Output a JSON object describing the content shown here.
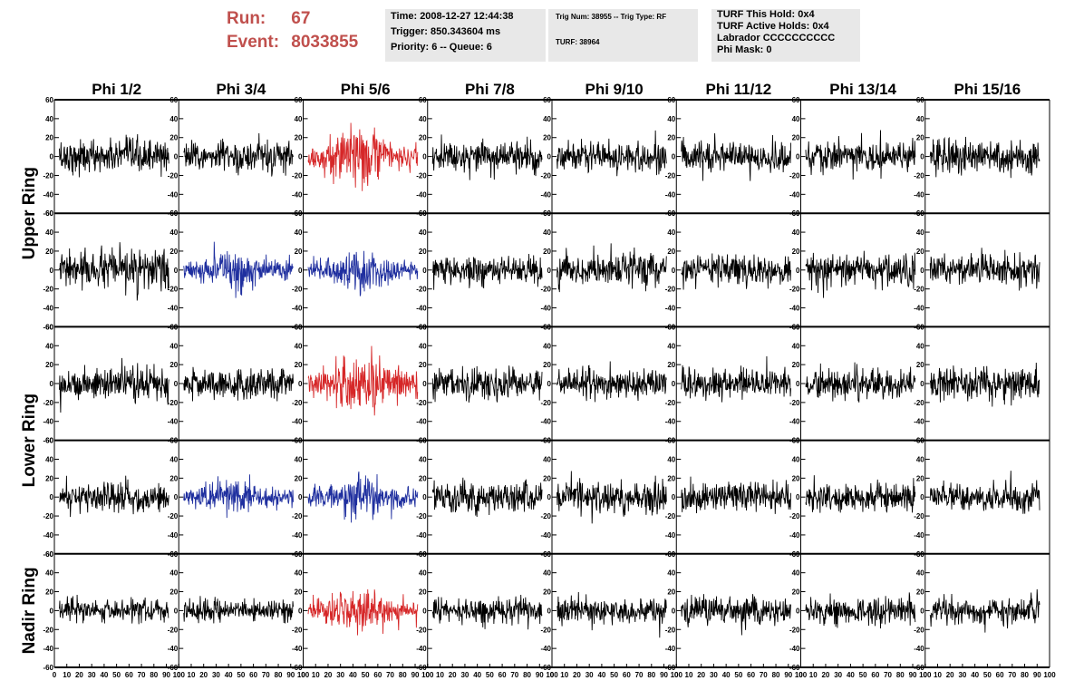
{
  "header": {
    "run_label": "Run:",
    "run_value": "67",
    "event_label": "Event:",
    "event_value": "8033855",
    "time": "Time: 2008-12-27 12:44:38",
    "trigger": "Trigger: 850.343604 ms",
    "priority": "Priority: 6 -- Queue: 6",
    "trig_num": "Trig Num: 38955 -- Trig Type: RF",
    "turf": "TURF: 38964",
    "turf_this_hold": "TURF This Hold: 0x4",
    "turf_active_holds": "TURF Active Holds: 0x4",
    "labrador": "Labrador CCCCCCCCCC",
    "phi_mask": "Phi Mask: 0"
  },
  "columns": [
    "Phi 1/2",
    "Phi 3/4",
    "Phi 5/6",
    "Phi 7/8",
    "Phi 9/10",
    "Phi 11/12",
    "Phi 13/14",
    "Phi 15/16"
  ],
  "rows": [
    "Upper Ring",
    "Lower Ring",
    "Nadir Ring"
  ],
  "colors": {
    "default_trace": "#000000",
    "highlight_red": "#d62728",
    "highlight_blue": "#1f2f9f",
    "header_red": "#c0504d",
    "info_bg": "#e8e8e8"
  },
  "chart_data": {
    "type": "line",
    "panel_rows": 5,
    "panel_cols": 8,
    "ylim": [
      -60,
      60
    ],
    "yticks": [
      -60,
      -40,
      -20,
      0,
      20,
      40,
      60
    ],
    "ytick_labels": [
      "-60",
      "-40",
      "-20",
      "0",
      "20",
      "40",
      "60"
    ],
    "xlim": [
      0,
      100
    ],
    "xticks": [
      0,
      10,
      20,
      30,
      40,
      50,
      60,
      70,
      80,
      90,
      100
    ],
    "xtick_labels": [
      "0",
      "10",
      "20",
      "30",
      "40",
      "50",
      "60",
      "70",
      "80",
      "90",
      "100"
    ],
    "n_samples": 260,
    "panel_amplitude": [
      [
        16,
        15,
        22,
        15,
        15,
        14,
        15,
        16
      ],
      [
        18,
        15,
        16,
        14,
        16,
        14,
        15,
        16
      ],
      [
        16,
        14,
        24,
        16,
        14,
        14,
        14,
        15
      ],
      [
        14,
        14,
        16,
        15,
        15,
        14,
        15,
        14
      ],
      [
        11,
        10,
        16,
        13,
        13,
        14,
        13,
        14
      ]
    ],
    "trace_color": [
      [
        "default",
        "default",
        "red",
        "default",
        "default",
        "default",
        "default",
        "default"
      ],
      [
        "default",
        "blue",
        "blue",
        "default",
        "default",
        "default",
        "default",
        "default"
      ],
      [
        "default",
        "default",
        "red",
        "default",
        "default",
        "default",
        "default",
        "default"
      ],
      [
        "default",
        "blue",
        "blue",
        "default",
        "default",
        "default",
        "default",
        "default"
      ],
      [
        "default",
        "default",
        "red",
        "default",
        "default",
        "default",
        "default",
        "default"
      ]
    ],
    "highlight_envelope": true
  }
}
